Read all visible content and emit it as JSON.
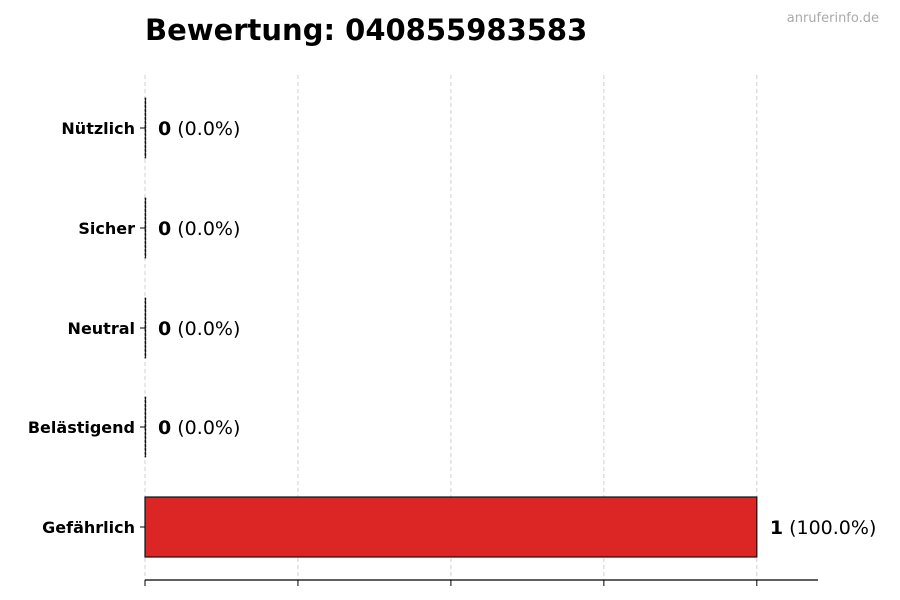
{
  "chart_data": {
    "type": "bar",
    "orientation": "horizontal",
    "title": "Bewertung: 040855983583",
    "watermark": "anruferinfo.de",
    "categories": [
      "Nützlich",
      "Sicher",
      "Neutral",
      "Belästigend",
      "Gefährlich"
    ],
    "values": [
      0,
      0,
      0,
      0,
      1
    ],
    "value_labels": [
      "0",
      "0",
      "0",
      "0",
      "1"
    ],
    "percent_labels": [
      "(0.0%)",
      "(0.0%)",
      "(0.0%)",
      "(0.0%)",
      "(100.0%)"
    ],
    "bar_color": "#dc2626",
    "xlim": [
      0,
      1.1
    ],
    "xticks": [
      0,
      0.25,
      0.5,
      0.75,
      1
    ],
    "xtick_labels_shown": false,
    "grid": "x, dashed",
    "xlabel": "",
    "ylabel": ""
  }
}
